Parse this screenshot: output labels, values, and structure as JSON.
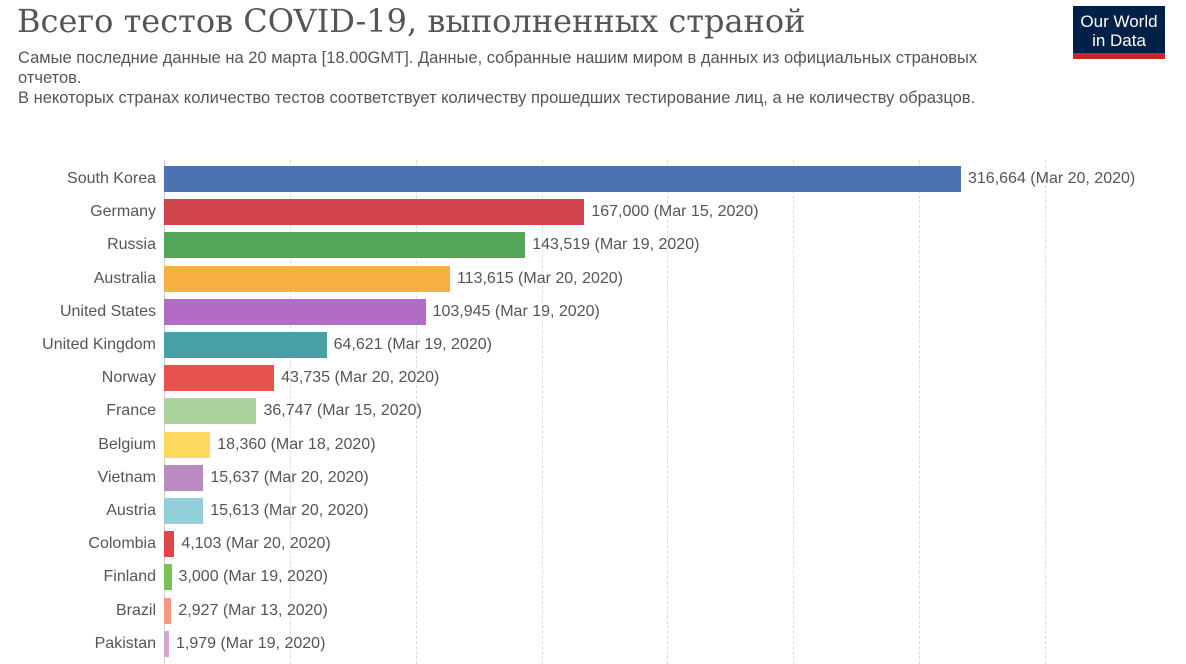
{
  "header": {
    "title": "Всего тестов COVID-19, выполненных страной",
    "subtitle_line1": "Самые последние данные на 20 марта [18.00GMT]. Данные, собранные нашим миром в данных из официальных страновых отчетов.",
    "subtitle_line2": "В некоторых странах количество тестов соответствует количеству прошедших тестирование лиц, а не количеству образцов."
  },
  "logo": {
    "line1": "Our World",
    "line2": "in Data",
    "bg": "#002147",
    "band": "#ce261e"
  },
  "chart_data": {
    "type": "bar",
    "orientation": "horizontal",
    "title": "Всего тестов COVID-19, выполненных страной",
    "xlabel": "",
    "ylabel": "",
    "xlim": [
      0,
      350000
    ],
    "grid": true,
    "grid_step": 50000,
    "categories": [
      "South Korea",
      "Germany",
      "Russia",
      "Australia",
      "United States",
      "United Kingdom",
      "Norway",
      "France",
      "Belgium",
      "Vietnam",
      "Austria",
      "Colombia",
      "Finland",
      "Brazil",
      "Pakistan"
    ],
    "values": [
      316664,
      167000,
      143519,
      113615,
      103945,
      64621,
      43735,
      36747,
      18360,
      15637,
      15613,
      4103,
      3000,
      2927,
      1979
    ],
    "value_labels": [
      "316,664 (Mar 20, 2020)",
      "167,000 (Mar 15, 2020)",
      "143,519 (Mar 19, 2020)",
      "113,615 (Mar 20, 2020)",
      "103,945 (Mar 19, 2020)",
      "64,621 (Mar 19, 2020)",
      "43,735 (Mar 20, 2020)",
      "36,747 (Mar 15, 2020)",
      "18,360 (Mar 18, 2020)",
      "15,637 (Mar 20, 2020)",
      "15,613 (Mar 20, 2020)",
      "4,103 (Mar 20, 2020)",
      "3,000 (Mar 19, 2020)",
      "2,927 (Mar 13, 2020)",
      "1,979 (Mar 19, 2020)"
    ],
    "colors": [
      "#4c72b0",
      "#d0444b",
      "#54a55a",
      "#f5b041",
      "#b06bc4",
      "#47a0a6",
      "#e8524e",
      "#abd39b",
      "#fcd95c",
      "#bb88bf",
      "#91d0d8",
      "#e14448",
      "#7cc05a",
      "#f19a7c",
      "#d9a4d2"
    ]
  }
}
